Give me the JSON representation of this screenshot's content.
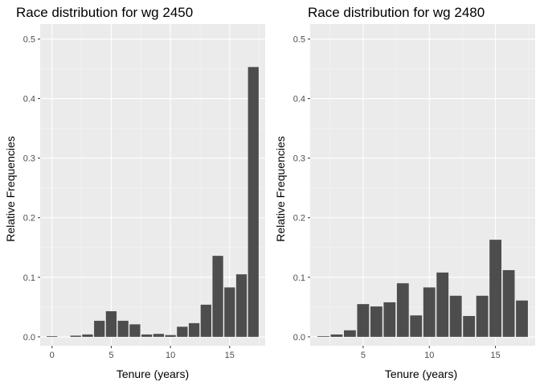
{
  "chart_data": [
    {
      "type": "bar",
      "title": "Race distribution for wg 2450",
      "xlabel": "Tenure (years)",
      "ylabel": "Relative Frequencies",
      "xlim": [
        -1,
        18
      ],
      "ylim": [
        -0.015,
        0.525
      ],
      "xticks": [
        0,
        5,
        10,
        15
      ],
      "yticks": [
        0.0,
        0.1,
        0.2,
        0.3,
        0.4,
        0.5
      ],
      "ytick_labels": [
        "0.0",
        "0.1",
        "0.2",
        "0.3",
        "0.4",
        "0.5"
      ],
      "grid": true,
      "bar_color": "#4d4d4d",
      "panel_bg": "#ebebeb",
      "x": [
        0,
        2,
        3,
        4,
        5,
        6,
        7,
        8,
        9,
        10,
        11,
        12,
        13,
        14,
        15,
        16,
        17
      ],
      "values": [
        0.001,
        0.002,
        0.004,
        0.027,
        0.043,
        0.027,
        0.021,
        0.004,
        0.005,
        0.003,
        0.017,
        0.023,
        0.054,
        0.136,
        0.083,
        0.105,
        0.453
      ]
    },
    {
      "type": "bar",
      "title": "Race distribution for wg 2480",
      "xlabel": "Tenure (years)",
      "ylabel": "Relative Frequencies",
      "xlim": [
        1,
        18
      ],
      "ylim": [
        -0.015,
        0.525
      ],
      "xticks": [
        5,
        10,
        15
      ],
      "yticks": [
        0.0,
        0.1,
        0.2,
        0.3,
        0.4,
        0.5
      ],
      "ytick_labels": [
        "0.0",
        "0.1",
        "0.2",
        "0.3",
        "0.4",
        "0.5"
      ],
      "grid": true,
      "bar_color": "#4d4d4d",
      "panel_bg": "#ebebeb",
      "x": [
        2,
        3,
        4,
        5,
        6,
        7,
        8,
        9,
        10,
        11,
        12,
        13,
        14,
        15,
        16,
        17
      ],
      "values": [
        0.001,
        0.004,
        0.011,
        0.055,
        0.051,
        0.058,
        0.09,
        0.036,
        0.083,
        0.108,
        0.069,
        0.035,
        0.069,
        0.163,
        0.112,
        0.061
      ]
    }
  ]
}
